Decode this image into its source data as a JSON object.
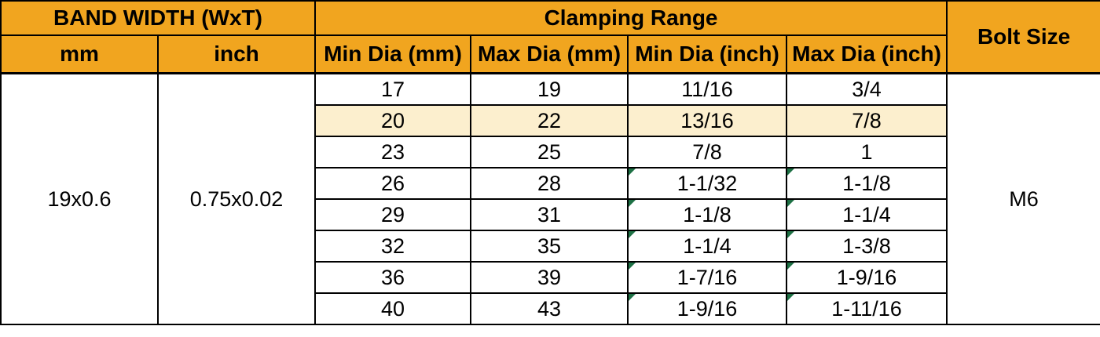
{
  "table": {
    "header": {
      "band_width_label": "BAND WIDTH (WxT)",
      "clamping_range_label": "Clamping Range",
      "bolt_size_label": "Bolt Size",
      "sub_headers": {
        "mm": "mm",
        "inch": "inch",
        "min_dia_mm": "Min Dia (mm)",
        "max_dia_mm": "Max Dia (mm)",
        "min_dia_inch": "Min Dia (inch)",
        "max_dia_inch": "Max Dia (inch)"
      }
    },
    "band_width_mm_value": "19x0.6",
    "band_width_inch_value": "0.75x0.02",
    "bolt_size_value": "M6",
    "rows": [
      {
        "min_mm": "17",
        "max_mm": "19",
        "min_inch": "11/16",
        "max_inch": "3/4",
        "highlight": false,
        "flag": false
      },
      {
        "min_mm": "20",
        "max_mm": "22",
        "min_inch": "13/16",
        "max_inch": "7/8",
        "highlight": true,
        "flag": false
      },
      {
        "min_mm": "23",
        "max_mm": "25",
        "min_inch": "7/8",
        "max_inch": "1",
        "highlight": false,
        "flag": false
      },
      {
        "min_mm": "26",
        "max_mm": "28",
        "min_inch": "1-1/32",
        "max_inch": "1-1/8",
        "highlight": false,
        "flag": true
      },
      {
        "min_mm": "29",
        "max_mm": "31",
        "min_inch": "1-1/8",
        "max_inch": "1-1/4",
        "highlight": false,
        "flag": true
      },
      {
        "min_mm": "32",
        "max_mm": "35",
        "min_inch": "1-1/4",
        "max_inch": "1-3/8",
        "highlight": false,
        "flag": true
      },
      {
        "min_mm": "36",
        "max_mm": "39",
        "min_inch": "1-7/16",
        "max_inch": "1-9/16",
        "highlight": false,
        "flag": true
      },
      {
        "min_mm": "40",
        "max_mm": "43",
        "min_inch": "1-9/16",
        "max_inch": "1-11/16",
        "highlight": false,
        "flag": true
      }
    ],
    "colors": {
      "header_bg": "#F1A51F",
      "highlight_bg": "#FCEFCE",
      "flag_triangle": "#1E7145",
      "border": "#000000"
    }
  },
  "chart_data": {
    "type": "table",
    "title": "Clamp band width / clamping range / bolt size specification",
    "columns": [
      "BAND WIDTH mm",
      "BAND WIDTH inch",
      "Min Dia (mm)",
      "Max Dia (mm)",
      "Min Dia (inch)",
      "Max Dia (inch)",
      "Bolt Size"
    ],
    "band_width": {
      "mm": "19x0.6",
      "inch": "0.75x0.02"
    },
    "bolt_size": "M6",
    "rows": [
      [
        "17",
        "19",
        "11/16",
        "3/4"
      ],
      [
        "20",
        "22",
        "13/16",
        "7/8"
      ],
      [
        "23",
        "25",
        "7/8",
        "1"
      ],
      [
        "26",
        "28",
        "1-1/32",
        "1-1/8"
      ],
      [
        "29",
        "31",
        "1-1/8",
        "1-1/4"
      ],
      [
        "32",
        "35",
        "1-1/4",
        "1-3/8"
      ],
      [
        "36",
        "39",
        "1-7/16",
        "1-9/16"
      ],
      [
        "40",
        "43",
        "1-9/16",
        "1-11/16"
      ]
    ],
    "highlighted_row_index": 1,
    "layout": {
      "header_fill": "#F1A51F",
      "highlight_fill": "#FCEFCE",
      "grid": true
    }
  }
}
